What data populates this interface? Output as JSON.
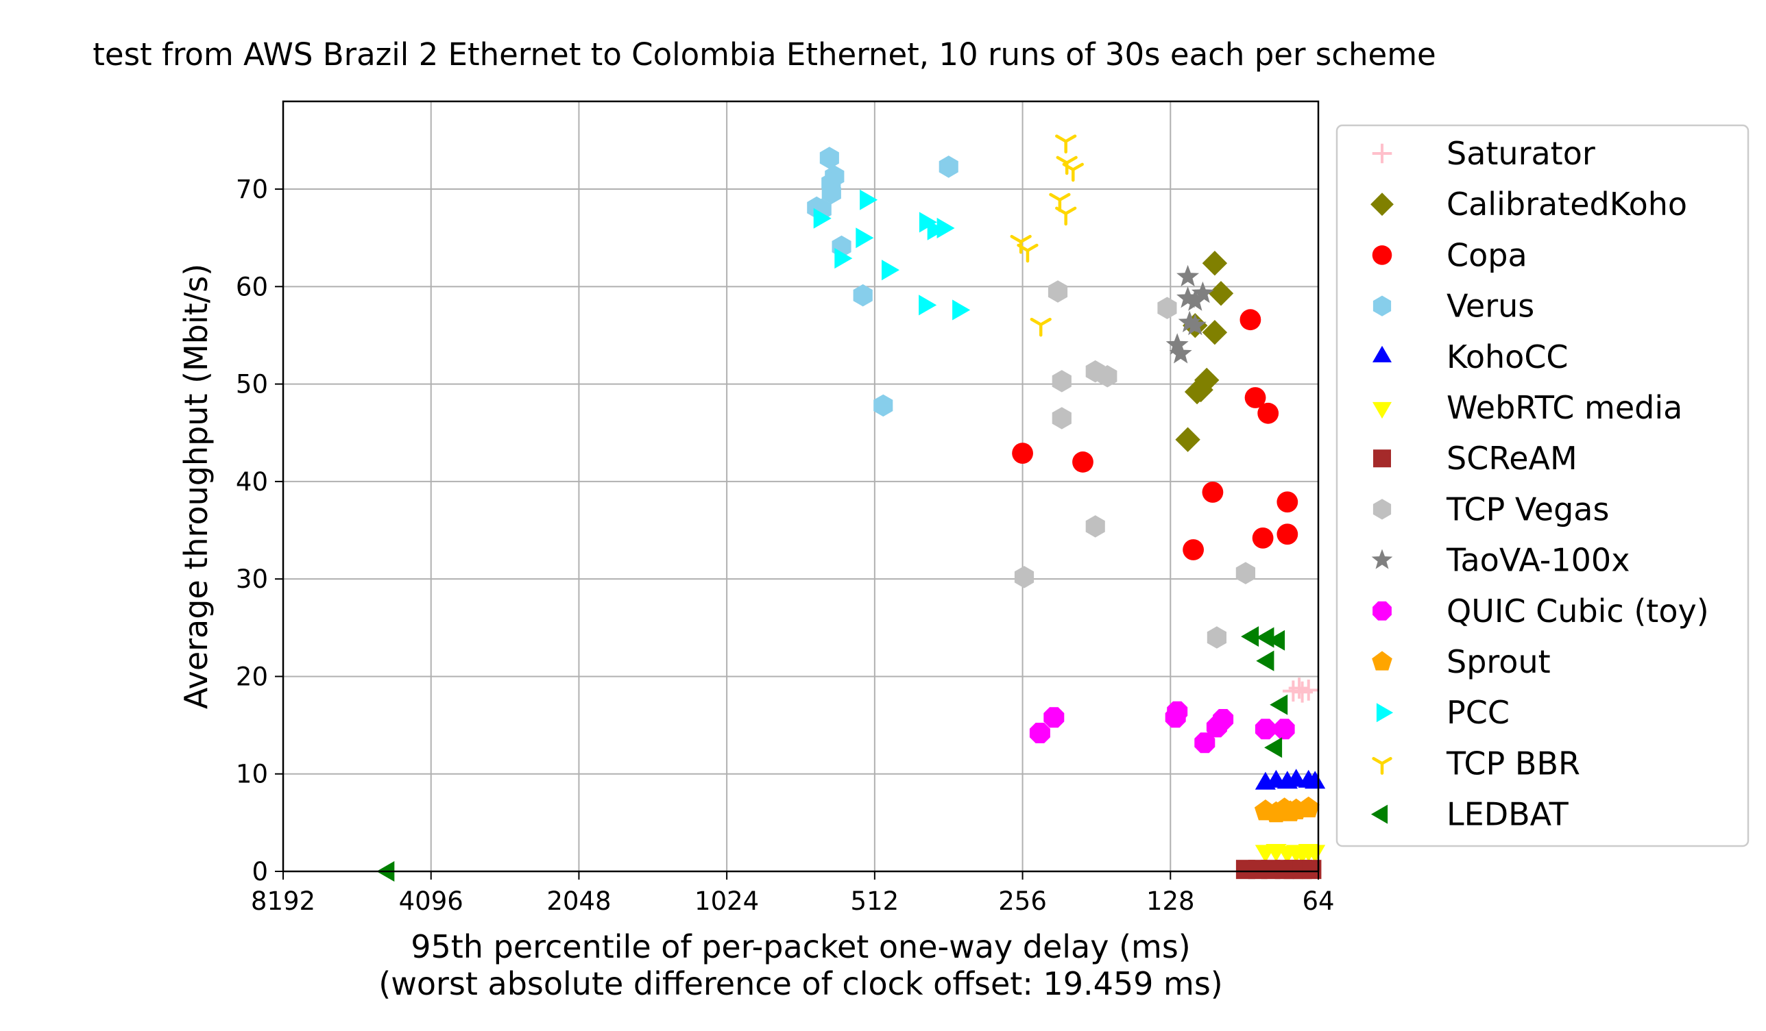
{
  "chart_data": {
    "type": "scatter",
    "title": "test from AWS Brazil 2 Ethernet to Colombia Ethernet, 10 runs of 30s each per scheme",
    "xlabel": "95th percentile of per-packet one-way delay (ms)",
    "xlabel2": "(worst absolute difference of clock offset: 19.459 ms)",
    "ylabel": "Average throughput (Mbit/s)",
    "xscale": "log2-reversed",
    "xlim": [
      8192,
      64
    ],
    "ylim": [
      0,
      79
    ],
    "grid": true,
    "legend_position": "outside-right",
    "xticks": [
      8192,
      4096,
      2048,
      1024,
      512,
      256,
      128,
      64
    ],
    "xtick_labels": [
      "8192",
      "4096",
      "2048",
      "1024",
      "512",
      "256",
      "128",
      "64"
    ],
    "yticks": [
      0,
      10,
      20,
      30,
      40,
      50,
      60,
      70
    ],
    "ytick_labels": [
      "0",
      "10",
      "20",
      "30",
      "40",
      "50",
      "60",
      "70"
    ],
    "series": [
      {
        "name": "Saturator",
        "marker": "plus",
        "color": "#ffc0cb",
        "points": [
          [
            72,
            18.5
          ],
          [
            70,
            18.8
          ],
          [
            67,
            18.6
          ],
          [
            69,
            18.4
          ]
        ]
      },
      {
        "name": "CalibratedKoho",
        "marker": "diamond",
        "color": "#808000",
        "points": [
          [
            104,
            62.4
          ],
          [
            101,
            59.3
          ],
          [
            104,
            55.3
          ],
          [
            114,
            56.0
          ],
          [
            108,
            50.4
          ],
          [
            111,
            49.4
          ],
          [
            118,
            44.3
          ],
          [
            113,
            49.2
          ]
        ]
      },
      {
        "name": "Copa",
        "marker": "circle",
        "color": "#ff0000",
        "points": [
          [
            88,
            56.6
          ],
          [
            86,
            48.6
          ],
          [
            81,
            47.0
          ],
          [
            74,
            37.9
          ],
          [
            83,
            34.2
          ],
          [
            74,
            34.6
          ],
          [
            105,
            38.9
          ],
          [
            115,
            33.0
          ],
          [
            256,
            42.9
          ],
          [
            193,
            42.0
          ]
        ]
      },
      {
        "name": "Verus",
        "marker": "hexagon",
        "color": "#87ceeb",
        "points": [
          [
            633,
            73.2
          ],
          [
            618,
            71.3
          ],
          [
            628,
            70.6
          ],
          [
            627,
            69.6
          ],
          [
            672,
            68.1
          ],
          [
            656,
            67.9
          ],
          [
            598,
            64.1
          ],
          [
            541,
            59.1
          ],
          [
            492,
            47.8
          ],
          [
            362,
            72.3
          ]
        ]
      },
      {
        "name": "KohoCC",
        "marker": "triangle-up",
        "color": "#0000ff",
        "points": [
          [
            82,
            9.0
          ],
          [
            78,
            9.2
          ],
          [
            74,
            9.1
          ],
          [
            71,
            9.3
          ],
          [
            67,
            9.2
          ],
          [
            65,
            9.1
          ]
        ]
      },
      {
        "name": "WebRTC media",
        "marker": "triangle-down",
        "color": "#ffff00",
        "points": [
          [
            82,
            2.1
          ],
          [
            78,
            2.2
          ],
          [
            74,
            2.0
          ],
          [
            71,
            2.1
          ],
          [
            69,
            2.0
          ],
          [
            67,
            2.2
          ],
          [
            65,
            2.1
          ]
        ]
      },
      {
        "name": "SCReAM",
        "marker": "square",
        "color": "#a52a2a",
        "points": [
          [
            90,
            0.2
          ],
          [
            85,
            0.2
          ],
          [
            80,
            0.2
          ],
          [
            75,
            0.2
          ],
          [
            72,
            0.2
          ],
          [
            69,
            0.2
          ],
          [
            66,
            0.2
          ]
        ]
      },
      {
        "name": "TCP Vegas",
        "marker": "hexagon",
        "color": "#c0c0c0",
        "points": [
          [
            217,
            59.5
          ],
          [
            213,
            50.3
          ],
          [
            213,
            46.5
          ],
          [
            182,
            51.3
          ],
          [
            172,
            50.8
          ],
          [
            182,
            35.4
          ],
          [
            130,
            57.8
          ],
          [
            254,
            30.2
          ],
          [
            90,
            30.6
          ],
          [
            103,
            24.0
          ]
        ]
      },
      {
        "name": "TaoVA-100x",
        "marker": "star",
        "color": "#808080",
        "points": [
          [
            118,
            61.0
          ],
          [
            118,
            58.8
          ],
          [
            114,
            58.5
          ],
          [
            110,
            59.3
          ],
          [
            117,
            56.3
          ],
          [
            114,
            56.0
          ],
          [
            124,
            54.0
          ],
          [
            122,
            53.1
          ]
        ]
      },
      {
        "name": "QUIC Cubic (toy)",
        "marker": "octagon",
        "color": "#ff00ff",
        "points": [
          [
            236,
            14.2
          ],
          [
            221,
            15.8
          ],
          [
            124,
            16.4
          ],
          [
            125,
            15.8
          ],
          [
            103,
            14.8
          ],
          [
            100,
            15.6
          ],
          [
            109,
            13.2
          ],
          [
            82,
            14.6
          ],
          [
            75,
            14.6
          ]
        ]
      },
      {
        "name": "Sprout",
        "marker": "pentagon",
        "color": "#ffa500",
        "points": [
          [
            82,
            6.2
          ],
          [
            78,
            6.0
          ],
          [
            75,
            6.4
          ],
          [
            73,
            6.1
          ],
          [
            71,
            6.3
          ],
          [
            67,
            6.5
          ]
        ]
      },
      {
        "name": "PCC",
        "marker": "triangle-right",
        "color": "#00ffff",
        "points": [
          [
            534,
            68.9
          ],
          [
            663,
            67.0
          ],
          [
            404,
            66.6
          ],
          [
            389,
            65.8
          ],
          [
            372,
            66.0
          ],
          [
            544,
            65.0
          ],
          [
            601,
            62.9
          ],
          [
            482,
            61.7
          ],
          [
            405,
            58.1
          ],
          [
            346,
            57.6
          ]
        ]
      },
      {
        "name": "TCP BBR",
        "marker": "tri-down",
        "color": "#ffd700",
        "points": [
          [
            209,
            74.9
          ],
          [
            208,
            72.7
          ],
          [
            202,
            72.0
          ],
          [
            215,
            68.9
          ],
          [
            209,
            67.5
          ],
          [
            258,
            64.6
          ],
          [
            250,
            63.7
          ],
          [
            235,
            56.1
          ]
        ]
      },
      {
        "name": "LEDBAT",
        "marker": "triangle-left",
        "color": "#008000",
        "points": [
          [
            87,
            24.1
          ],
          [
            81,
            24.0
          ],
          [
            77,
            23.7
          ],
          [
            81,
            21.6
          ],
          [
            76,
            17.1
          ],
          [
            78,
            12.7
          ],
          [
            5000,
            0.0
          ]
        ]
      }
    ]
  }
}
